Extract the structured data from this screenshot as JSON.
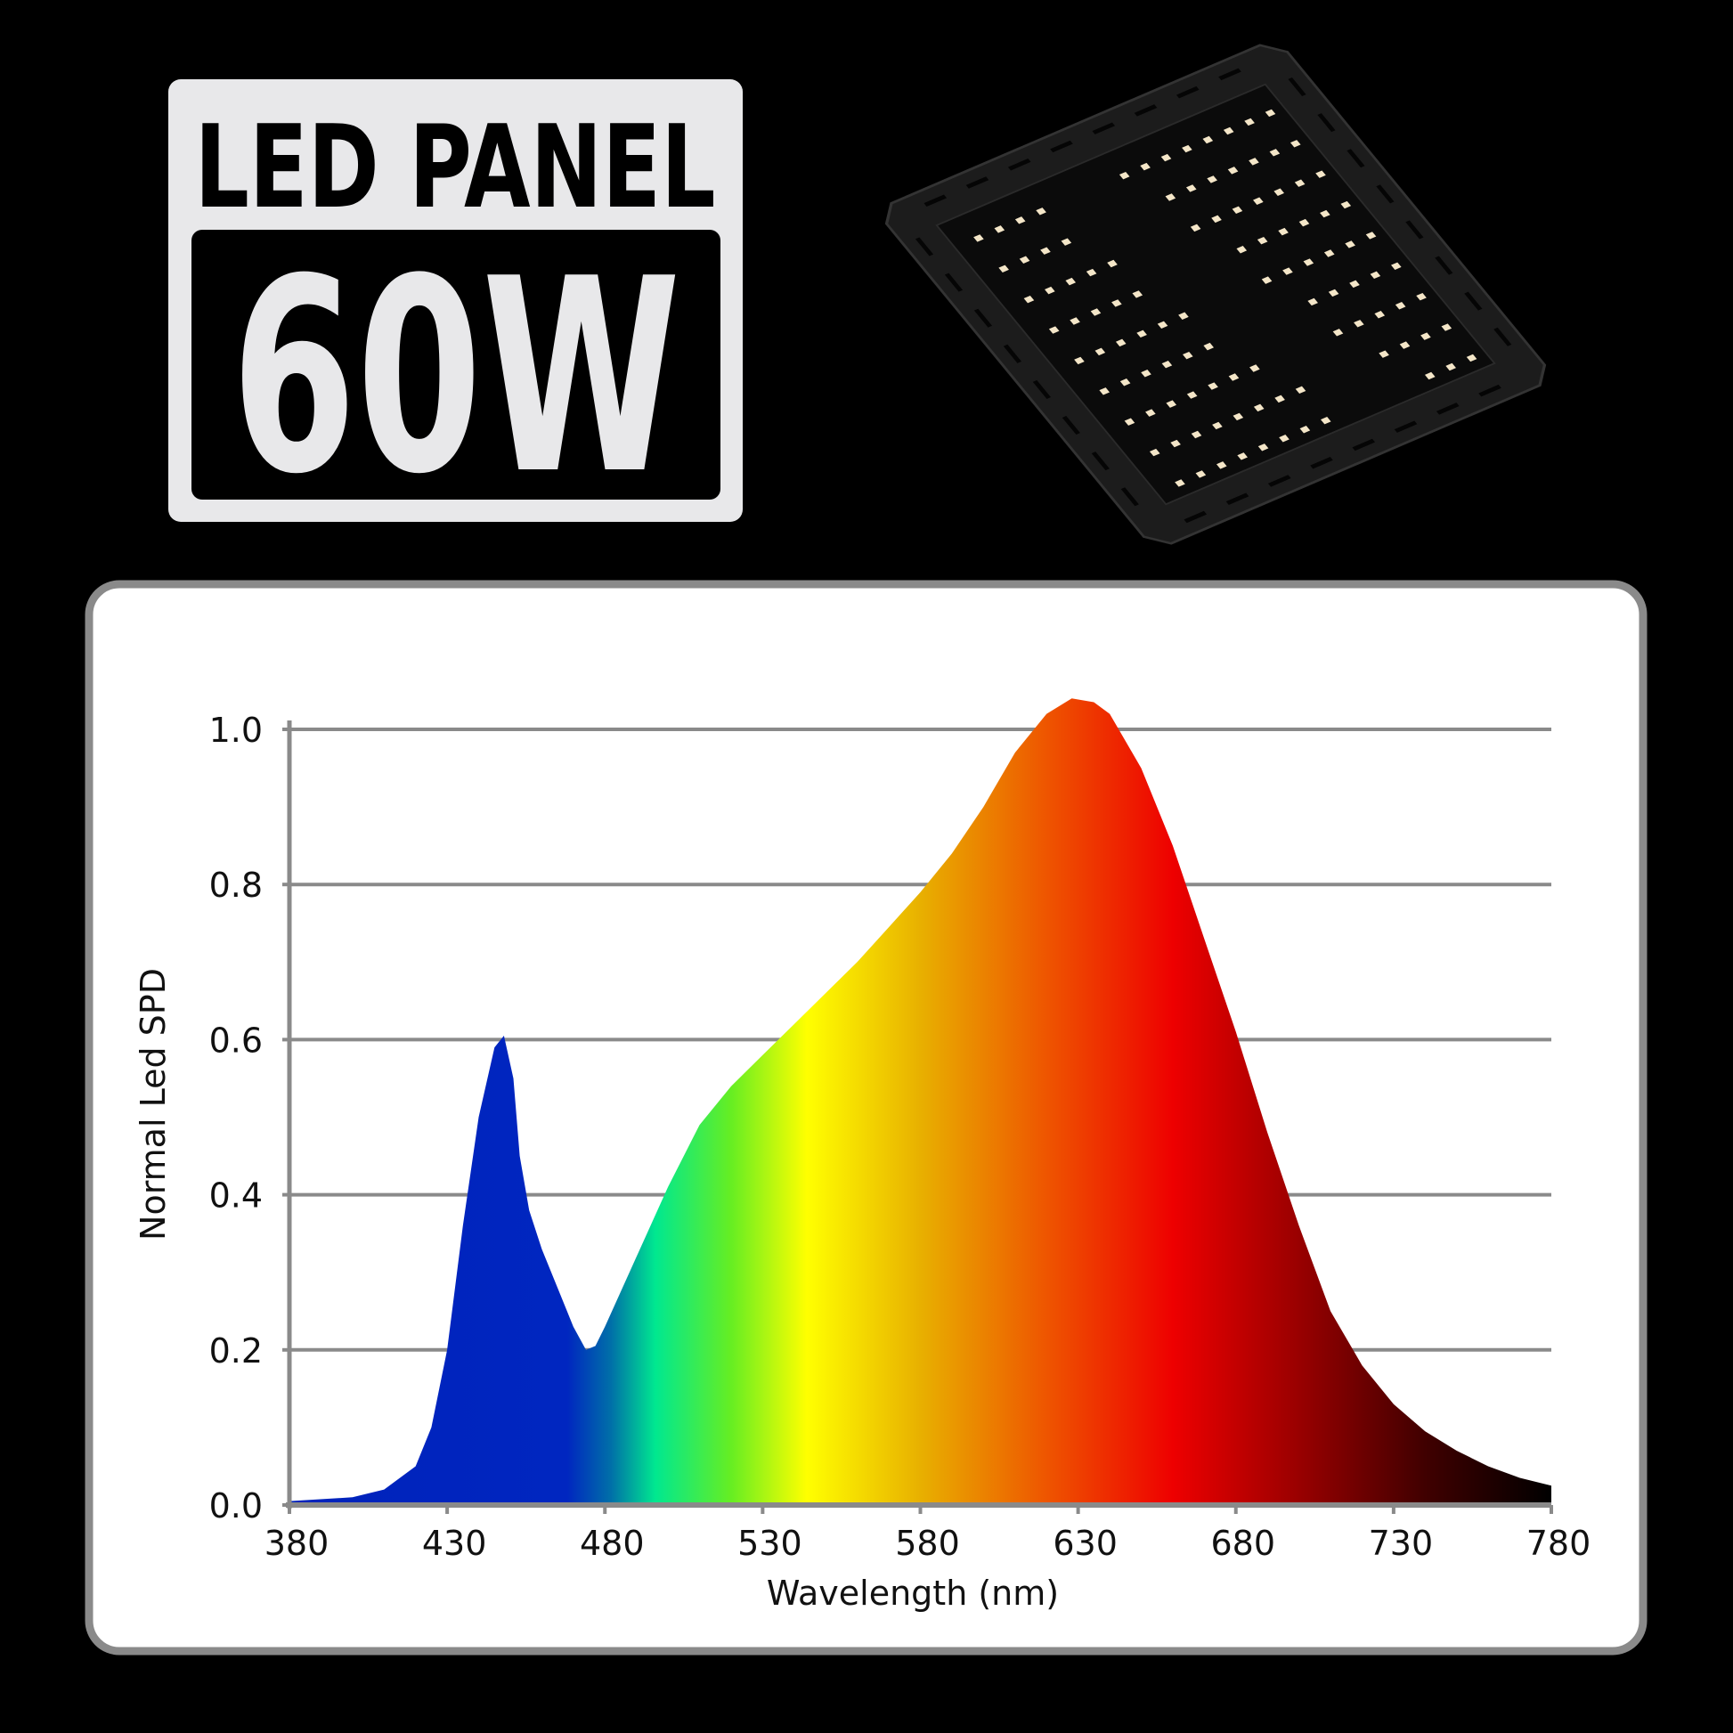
{
  "badge": {
    "title": "LED PANEL",
    "power": "60W"
  },
  "product_image": {
    "icon": "led-panel-fixture"
  },
  "chart_data": {
    "type": "area",
    "title": "",
    "xlabel": "Wavelength (nm)",
    "ylabel": "Normal Led SPD",
    "xlim": [
      380,
      780
    ],
    "ylim": [
      0,
      1.0
    ],
    "grid": true,
    "x_ticks": [
      "380",
      "430",
      "480",
      "530",
      "580",
      "630",
      "680",
      "730",
      "780"
    ],
    "y_ticks": [
      "0.0",
      "0.2",
      "0.4",
      "0.6",
      "0.8",
      "1.0"
    ],
    "fill": "visible-spectrum gradient",
    "x": [
      380,
      400,
      410,
      420,
      425,
      430,
      435,
      440,
      445,
      448,
      451,
      453,
      456,
      460,
      465,
      470,
      474,
      477,
      480,
      490,
      500,
      510,
      520,
      530,
      540,
      550,
      560,
      570,
      580,
      590,
      600,
      610,
      620,
      628,
      635,
      640,
      650,
      660,
      670,
      680,
      690,
      700,
      710,
      720,
      730,
      740,
      750,
      760,
      770,
      780
    ],
    "y": [
      0.005,
      0.01,
      0.02,
      0.05,
      0.1,
      0.2,
      0.36,
      0.5,
      0.59,
      0.605,
      0.55,
      0.45,
      0.38,
      0.33,
      0.28,
      0.23,
      0.2,
      0.205,
      0.23,
      0.32,
      0.41,
      0.49,
      0.54,
      0.58,
      0.62,
      0.66,
      0.7,
      0.745,
      0.79,
      0.84,
      0.9,
      0.97,
      1.02,
      1.04,
      1.035,
      1.02,
      0.95,
      0.85,
      0.73,
      0.61,
      0.48,
      0.36,
      0.25,
      0.18,
      0.13,
      0.095,
      0.07,
      0.05,
      0.035,
      0.025
    ]
  }
}
